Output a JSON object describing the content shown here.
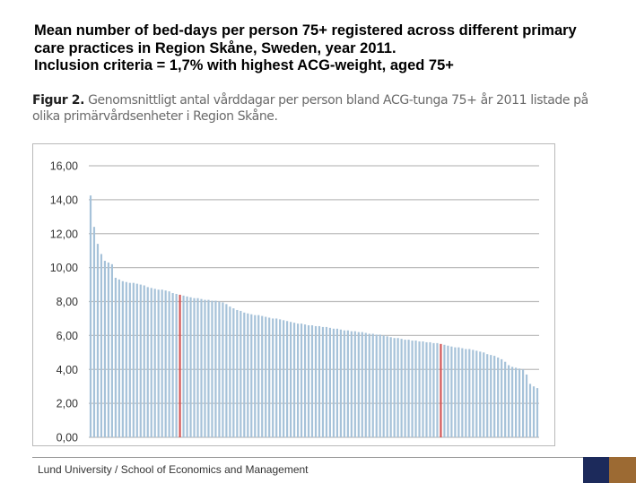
{
  "slide": {
    "title_lines": [
      "Mean number of bed-days per person 75+ registered across different primary",
      "care practices in Region Skåne, Sweden, year 2011.",
      "Inclusion criteria = 1,7% with highest ACG-weight, aged 75+"
    ],
    "caption_label": "Figur 2.",
    "caption_text": "Genomsnittligt antal vårddagar per person bland ACG-tunga 75+ år 2011 listade på olika primärvårdsenheter i Region Skåne.",
    "footer": "Lund University / School of Economics and Management"
  },
  "colors": {
    "bar": "#a6c2d9",
    "bar_highlight": "#d25555",
    "gridline": "#bdbdbd",
    "logo_left": "#1c2a5b",
    "logo_right": "#9c6a33"
  },
  "chart_data": {
    "type": "bar",
    "title": "",
    "xlabel": "",
    "ylabel": "",
    "ylim": [
      0,
      16
    ],
    "yticks": [
      "0,00",
      "2,00",
      "4,00",
      "6,00",
      "8,00",
      "10,00",
      "12,00",
      "14,00",
      "16,00"
    ],
    "grid": true,
    "highlight_indices": [
      25,
      98
    ],
    "values": [
      14.25,
      12.4,
      11.4,
      10.8,
      10.4,
      10.3,
      10.2,
      9.4,
      9.3,
      9.2,
      9.15,
      9.1,
      9.1,
      9.05,
      9.0,
      8.95,
      8.85,
      8.8,
      8.75,
      8.7,
      8.7,
      8.65,
      8.6,
      8.5,
      8.45,
      8.4,
      8.35,
      8.3,
      8.25,
      8.2,
      8.2,
      8.15,
      8.1,
      8.1,
      8.05,
      8.05,
      8.0,
      7.95,
      7.85,
      7.7,
      7.6,
      7.5,
      7.45,
      7.35,
      7.3,
      7.25,
      7.2,
      7.2,
      7.15,
      7.1,
      7.05,
      7.0,
      7.0,
      6.95,
      6.9,
      6.85,
      6.8,
      6.75,
      6.7,
      6.7,
      6.65,
      6.6,
      6.6,
      6.55,
      6.55,
      6.5,
      6.5,
      6.45,
      6.4,
      6.4,
      6.35,
      6.3,
      6.3,
      6.25,
      6.25,
      6.2,
      6.2,
      6.15,
      6.1,
      6.1,
      6.05,
      6.05,
      6.0,
      5.95,
      5.9,
      5.85,
      5.85,
      5.8,
      5.75,
      5.75,
      5.7,
      5.7,
      5.65,
      5.65,
      5.6,
      5.6,
      5.55,
      5.55,
      5.5,
      5.45,
      5.4,
      5.35,
      5.3,
      5.3,
      5.25,
      5.2,
      5.2,
      5.15,
      5.1,
      5.05,
      5.0,
      4.9,
      4.85,
      4.8,
      4.7,
      4.6,
      4.45,
      4.25,
      4.15,
      4.1,
      4.05,
      4.0,
      3.7,
      3.15,
      3.0,
      2.9
    ]
  }
}
